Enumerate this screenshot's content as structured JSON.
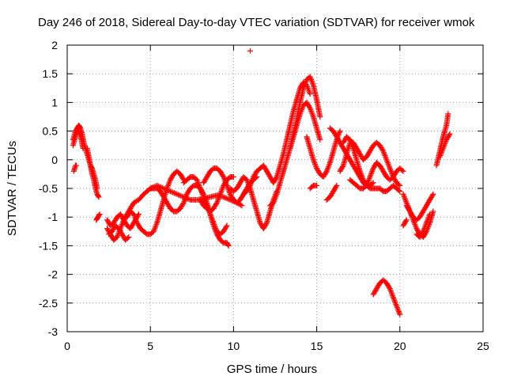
{
  "chart_data": {
    "type": "scatter",
    "title": "Day 246 of 2018, Sidereal Day-to-day VTEC variation (SDTVAR) for receiver wmok",
    "xlabel": "GPS time / hours",
    "ylabel": "SDTVAR / TECUs",
    "xlim": [
      0,
      25
    ],
    "ylim": [
      -3,
      2
    ],
    "xticks": [
      0,
      5,
      10,
      15,
      20,
      25
    ],
    "yticks": [
      -3,
      -2.5,
      -2,
      -1.5,
      -1,
      -0.5,
      0,
      0.5,
      1,
      1.5,
      2
    ],
    "xtick_labels": [
      "0",
      "5",
      "10",
      "15",
      "20",
      "25"
    ],
    "ytick_labels": [
      "-3",
      "-2.5",
      "-2",
      "-1.5",
      "-1",
      "-0.5",
      "0",
      "0.5",
      "1",
      "1.5",
      "2"
    ],
    "grid": true,
    "marker": "plus",
    "color": "#ff0000",
    "series": [
      {
        "name": "SDTVAR",
        "segments": [
          {
            "x": [
              0.35,
              0.5,
              0.6,
              0.7,
              0.8,
              0.9,
              1.0,
              1.1,
              1.2,
              1.3,
              1.4,
              1.5,
              1.6,
              1.7,
              1.8
            ],
            "y": [
              0.35,
              0.5,
              0.55,
              0.6,
              0.55,
              0.45,
              0.3,
              0.2,
              0.1,
              0.0,
              -0.1,
              -0.15,
              -0.25,
              -0.35,
              -0.5
            ]
          },
          {
            "x": [
              0.35,
              0.45,
              0.55,
              0.65,
              0.75,
              0.85,
              0.95
            ],
            "y": [
              0.25,
              0.35,
              0.45,
              0.5,
              0.45,
              0.35,
              0.2
            ]
          },
          {
            "x": [
              0.4,
              0.5,
              0.55
            ],
            "y": [
              -0.2,
              -0.1,
              -0.1
            ]
          },
          {
            "x": [
              1.2,
              1.3,
              1.4,
              1.5,
              1.6,
              1.7,
              1.8,
              1.9
            ],
            "y": [
              0.2,
              0.05,
              -0.1,
              -0.25,
              -0.35,
              -0.5,
              -0.6,
              -0.65
            ]
          },
          {
            "x": [
              1.75,
              1.85,
              1.95
            ],
            "y": [
              -1.05,
              -1.0,
              -0.95
            ]
          },
          {
            "x": [
              2.4,
              2.6,
              2.8,
              3.0,
              3.2,
              3.4,
              3.6,
              3.8,
              4.0,
              4.3,
              4.6,
              5.0,
              5.4,
              5.8,
              6.2,
              6.6,
              7.0,
              7.4,
              7.8,
              8.2,
              8.6,
              9.0,
              9.4,
              9.8,
              10.2,
              10.5
            ],
            "y": [
              -1.2,
              -1.3,
              -1.4,
              -1.35,
              -1.2,
              -1.05,
              -0.95,
              -0.85,
              -0.75,
              -0.7,
              -0.6,
              -0.5,
              -0.45,
              -0.5,
              -0.55,
              -0.6,
              -0.65,
              -0.7,
              -0.7,
              -0.68,
              -0.65,
              -0.62,
              -0.65,
              -0.7,
              -0.75,
              -0.8
            ]
          },
          {
            "x": [
              2.4,
              2.6,
              2.8,
              3.0,
              3.2,
              3.4,
              3.6,
              3.8,
              4.0,
              4.3
            ],
            "y": [
              -1.05,
              -1.15,
              -1.1,
              -1.0,
              -0.95,
              -1.05,
              -1.15,
              -1.2,
              -1.1,
              -0.95
            ]
          },
          {
            "x": [
              2.5,
              2.7,
              2.9,
              3.1,
              3.3,
              3.5,
              3.7
            ],
            "y": [
              -1.3,
              -1.25,
              -1.15,
              -1.2,
              -1.3,
              -1.4,
              -1.35
            ]
          },
          {
            "x": [
              3.6,
              3.8,
              4.0,
              4.2,
              4.4,
              4.6,
              4.8,
              5.0,
              5.2,
              5.4,
              5.6,
              5.8,
              6.0,
              6.2,
              6.4,
              6.6,
              6.8,
              7.0
            ],
            "y": [
              -1.0,
              -0.9,
              -0.95,
              -1.1,
              -1.2,
              -1.25,
              -1.3,
              -1.3,
              -1.25,
              -1.1,
              -0.9,
              -0.7,
              -0.5,
              -0.35,
              -0.25,
              -0.2,
              -0.25,
              -0.35
            ]
          },
          {
            "x": [
              5.0,
              5.2,
              5.4,
              5.6,
              5.8,
              6.0,
              6.2,
              6.4,
              6.6,
              6.8,
              7.0,
              7.2,
              7.4,
              7.6,
              7.8,
              8.0,
              8.2,
              8.4,
              8.6,
              8.8,
              9.0,
              9.2,
              9.4,
              9.6,
              9.7
            ],
            "y": [
              -0.5,
              -0.5,
              -0.5,
              -0.55,
              -0.65,
              -0.75,
              -0.85,
              -0.9,
              -0.9,
              -0.85,
              -0.75,
              -0.6,
              -0.5,
              -0.45,
              -0.45,
              -0.5,
              -0.6,
              -0.75,
              -0.95,
              -1.15,
              -1.3,
              -1.4,
              -1.45,
              -1.45,
              -1.5
            ]
          },
          {
            "x": [
              7.0,
              7.2,
              7.4,
              7.6,
              7.8,
              8.0,
              8.2,
              8.4,
              8.6,
              8.8,
              9.0,
              9.2,
              9.4,
              9.6
            ],
            "y": [
              -0.4,
              -0.35,
              -0.3,
              -0.3,
              -0.35,
              -0.5,
              -0.65,
              -0.8,
              -0.95,
              -1.1,
              -1.25,
              -1.3,
              -1.25,
              -1.15
            ]
          },
          {
            "x": [
              8.0,
              8.2,
              8.4,
              8.6,
              8.8,
              9.0,
              9.2,
              9.4,
              9.6,
              9.8,
              10.0
            ],
            "y": [
              -0.7,
              -0.8,
              -0.85,
              -0.9,
              -0.85,
              -0.75,
              -0.6,
              -0.45,
              -0.35,
              -0.3,
              -0.3
            ]
          },
          {
            "x": [
              8.2,
              8.4,
              8.6,
              8.8,
              9.0,
              9.2,
              9.4,
              9.6,
              9.8,
              10.0,
              10.2,
              10.4,
              10.6,
              10.8,
              11.0,
              11.2,
              11.4
            ],
            "y": [
              -0.4,
              -0.3,
              -0.2,
              -0.15,
              -0.15,
              -0.2,
              -0.3,
              -0.45,
              -0.6,
              -0.7,
              -0.75,
              -0.7,
              -0.6,
              -0.5,
              -0.4,
              -0.35,
              -0.3
            ]
          },
          {
            "x": [
              9.8,
              10.0,
              10.2,
              10.4,
              10.6,
              10.8,
              11.0,
              11.2,
              11.4,
              11.6,
              11.8,
              12.0,
              12.2,
              12.4,
              12.6
            ],
            "y": [
              -0.5,
              -0.55,
              -0.5,
              -0.4,
              -0.3,
              -0.35,
              -0.5,
              -0.7,
              -0.9,
              -1.1,
              -1.2,
              -1.1,
              -0.9,
              -0.7,
              -0.55
            ]
          },
          {
            "x": [
              10.6,
              10.8,
              11.0,
              11.2,
              11.4,
              11.6,
              11.8,
              12.0,
              12.2,
              12.4,
              12.6,
              12.8,
              13.0,
              13.2,
              13.4,
              13.6,
              13.8,
              14.0,
              14.2,
              14.4,
              14.6
            ],
            "y": [
              -0.6,
              -0.55,
              -0.45,
              -0.3,
              -0.2,
              -0.15,
              -0.1,
              -0.2,
              -0.3,
              -0.4,
              -0.3,
              -0.1,
              0.1,
              0.35,
              0.6,
              0.85,
              1.05,
              1.25,
              1.35,
              1.3,
              1.15
            ]
          },
          {
            "x": [
              11.0
            ],
            "y": [
              1.9
            ]
          },
          {
            "x": [
              12.2,
              12.4,
              12.6,
              12.8,
              13.0,
              13.2,
              13.4,
              13.6,
              13.8,
              14.0,
              14.2,
              14.4,
              14.6,
              14.8,
              15.0,
              15.2
            ],
            "y": [
              -0.8,
              -0.75,
              -0.6,
              -0.4,
              -0.2,
              0.0,
              0.2,
              0.45,
              0.7,
              1.0,
              1.25,
              1.4,
              1.45,
              1.3,
              1.05,
              0.75
            ]
          },
          {
            "x": [
              13.4,
              13.6,
              13.8,
              14.0,
              14.2,
              14.4,
              14.6,
              14.8,
              15.0,
              15.2
            ],
            "y": [
              0.2,
              0.4,
              0.6,
              0.8,
              0.95,
              1.0,
              0.9,
              0.75,
              0.55,
              0.35
            ]
          },
          {
            "x": [
              14.4,
              14.6,
              14.8,
              15.0,
              15.2,
              15.4,
              15.6,
              15.8,
              16.0,
              16.2,
              16.4
            ],
            "y": [
              0.4,
              0.2,
              0.0,
              -0.15,
              -0.25,
              -0.3,
              -0.2,
              -0.05,
              0.15,
              0.35,
              0.5
            ]
          },
          {
            "x": [
              14.6,
              14.8,
              15.0
            ],
            "y": [
              -0.5,
              -0.45,
              -0.45
            ]
          },
          {
            "x": [
              15.6,
              15.8,
              16.0,
              16.2
            ],
            "y": [
              -0.7,
              -0.65,
              -0.55,
              -0.45
            ]
          },
          {
            "x": [
              15.8,
              16.0,
              16.2,
              16.4,
              16.6,
              16.8,
              17.0,
              17.2,
              17.4,
              17.6,
              17.8,
              18.0,
              18.2,
              18.4,
              18.6,
              18.8,
              19.0,
              19.2,
              19.4,
              19.6,
              19.8,
              20.0
            ],
            "y": [
              0.55,
              0.5,
              0.4,
              0.3,
              0.2,
              0.1,
              0.0,
              -0.1,
              -0.2,
              -0.3,
              -0.4,
              -0.45,
              -0.5,
              -0.5,
              -0.5,
              -0.5,
              -0.55,
              -0.55,
              -0.5,
              -0.45,
              -0.5,
              -0.55
            ]
          },
          {
            "x": [
              16.4,
              16.6,
              16.8,
              17.0,
              17.2,
              17.4,
              17.6,
              17.8,
              18.0,
              18.2,
              18.4,
              18.6,
              18.8,
              19.0,
              19.2,
              19.4,
              19.6,
              19.8,
              20.0
            ],
            "y": [
              -0.2,
              -0.1,
              0.1,
              0.3,
              0.3,
              0.2,
              0.1,
              0.0,
              0.05,
              0.15,
              0.25,
              0.3,
              0.25,
              0.15,
              0.0,
              -0.15,
              -0.3,
              -0.4,
              -0.45
            ]
          },
          {
            "x": [
              16.6,
              16.8,
              17.0,
              17.2,
              17.4,
              17.6,
              17.8,
              18.0,
              18.2,
              18.4
            ],
            "y": [
              0.3,
              0.4,
              0.35,
              0.2,
              0.0,
              -0.2,
              -0.35,
              -0.45,
              -0.45,
              -0.4
            ]
          },
          {
            "x": [
              17.0,
              17.2,
              17.4,
              17.6,
              17.8,
              18.0,
              18.2,
              18.4,
              18.6,
              18.8,
              19.0,
              19.2,
              19.4,
              19.6,
              19.8,
              20.0,
              20.2
            ],
            "y": [
              -0.35,
              -0.4,
              -0.45,
              -0.5,
              -0.5,
              -0.45,
              -0.3,
              -0.15,
              -0.05,
              -0.1,
              -0.2,
              -0.3,
              -0.35,
              -0.3,
              -0.2,
              -0.15,
              -0.2
            ]
          },
          {
            "x": [
              18.4,
              18.6,
              18.8,
              19.0,
              19.2,
              19.4,
              19.6,
              19.8,
              20.0
            ],
            "y": [
              -2.35,
              -2.25,
              -2.15,
              -2.1,
              -2.15,
              -2.25,
              -2.4,
              -2.55,
              -2.7
            ]
          },
          {
            "x": [
              20.2,
              20.4,
              20.6,
              20.8,
              21.0,
              21.2,
              21.4,
              21.6,
              21.8,
              22.0
            ],
            "y": [
              -0.6,
              -0.75,
              -0.9,
              -1.05,
              -1.2,
              -1.3,
              -1.35,
              -1.25,
              -1.1,
              -0.9
            ]
          },
          {
            "x": [
              20.2,
              20.4
            ],
            "y": [
              -1.15,
              -1.05
            ]
          },
          {
            "x": [
              20.4,
              20.6,
              20.8,
              21.0,
              21.2,
              21.4,
              21.6,
              21.8,
              22.0
            ],
            "y": [
              -0.8,
              -0.9,
              -1.0,
              -1.05,
              -1.0,
              -0.9,
              -0.8,
              -0.7,
              -0.6
            ]
          },
          {
            "x": [
              21.0,
              21.2,
              21.4,
              21.6,
              21.8
            ],
            "y": [
              -1.3,
              -1.35,
              -1.25,
              -1.1,
              -0.95
            ]
          },
          {
            "x": [
              22.2,
              22.4,
              22.6,
              22.8,
              22.9
            ],
            "y": [
              -0.1,
              0.15,
              0.4,
              0.6,
              0.8
            ]
          },
          {
            "x": [
              22.4,
              22.6,
              22.8,
              23.0
            ],
            "y": [
              0.05,
              0.2,
              0.35,
              0.45
            ]
          }
        ]
      }
    ]
  }
}
